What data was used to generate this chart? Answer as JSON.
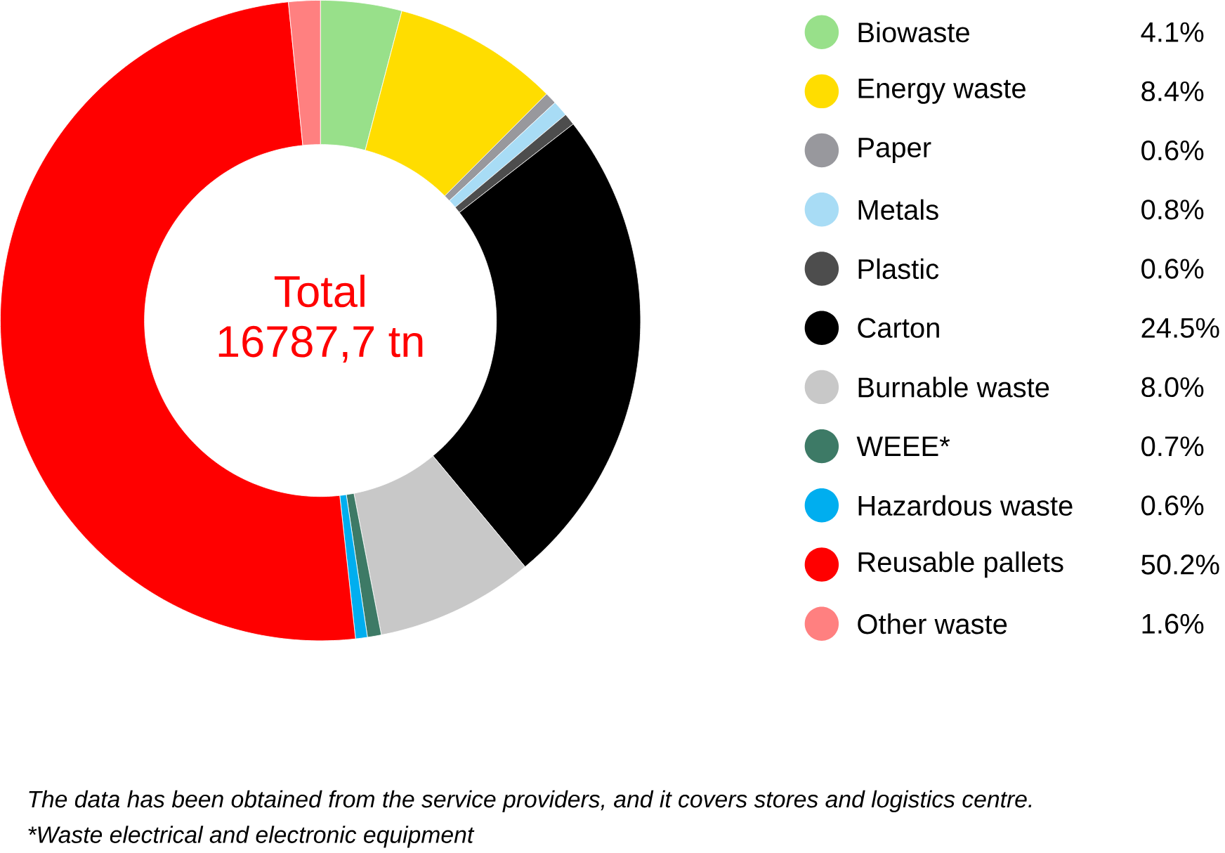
{
  "chart_data": {
    "type": "donut",
    "categories": [
      "Biowaste",
      "Energy waste",
      "Paper",
      "Metals",
      "Plastic",
      "Carton",
      "Burnable waste",
      "WEEE*",
      "Hazardous waste",
      "Reusable pallets",
      "Other waste"
    ],
    "values": [
      4.1,
      8.4,
      0.6,
      0.8,
      0.6,
      24.5,
      8.0,
      0.7,
      0.6,
      50.2,
      1.6
    ],
    "value_labels": [
      "4.1%",
      "8.4%",
      "0.6%",
      "0.8%",
      "0.6%",
      "24.5%",
      "8.0%",
      "0.7%",
      "0.6%",
      "50.2%",
      "1.6%"
    ],
    "colors": [
      "#98e08a",
      "#ffdd00",
      "#98989d",
      "#a8dcf5",
      "#4d4d4d",
      "#000000",
      "#c8c8c8",
      "#3d7a66",
      "#00aeef",
      "#ff0000",
      "#ff8080"
    ],
    "legend": "right",
    "annotations": [
      "Total",
      "16787,7 tn",
      "The data has been obtained from the service providers, and it covers stores and logistics centre.",
      "*Waste electrical and electronic equipment"
    ]
  }
}
